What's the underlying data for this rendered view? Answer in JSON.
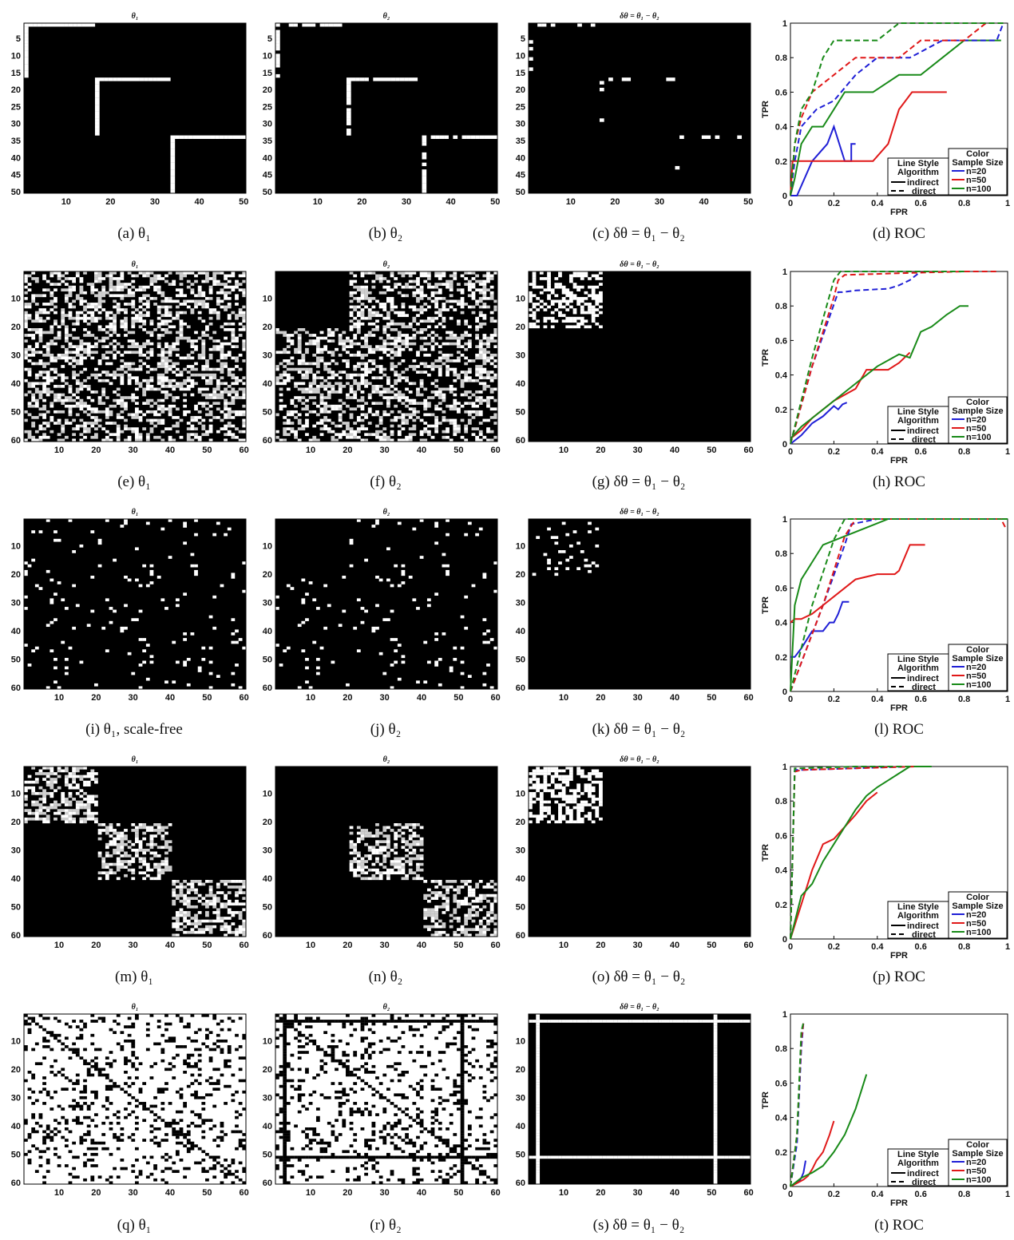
{
  "rows": [
    {
      "n": 50,
      "yticks": [
        5,
        10,
        15,
        20,
        25,
        30,
        35,
        40,
        45,
        50
      ],
      "xticks": [
        10,
        20,
        30,
        40,
        50
      ],
      "panels": [
        {
          "title": "θ₁",
          "caption": "(a) θ₁",
          "pattern": "lines1"
        },
        {
          "title": "θ₂",
          "caption": "(b) θ₂",
          "pattern": "lines2"
        },
        {
          "title": "δθ = θ₁ − θ₂",
          "caption": "(c) δθ = θ₁ − θ₂",
          "pattern": "linesdiff"
        }
      ],
      "roc_caption": "(d) ROC"
    },
    {
      "n": 60,
      "yticks": [
        10,
        20,
        30,
        40,
        50,
        60
      ],
      "xticks": [
        10,
        20,
        30,
        40,
        50,
        60
      ],
      "panels": [
        {
          "title": "θ₁",
          "caption": "(e) θ₁",
          "pattern": "dense_full"
        },
        {
          "title": "θ₂",
          "caption": "(f) θ₂",
          "pattern": "dense_missing_block"
        },
        {
          "title": "δθ = θ₁ − θ₂",
          "caption": "(g) δθ = θ₁ − θ₂",
          "pattern": "dense_block"
        }
      ],
      "roc_caption": "(h) ROC"
    },
    {
      "n": 60,
      "yticks": [
        10,
        20,
        30,
        40,
        50,
        60
      ],
      "xticks": [
        10,
        20,
        30,
        40,
        50,
        60
      ],
      "panels": [
        {
          "title": "θ₁",
          "caption": "(i) θ₁, scale-free",
          "pattern": "sparse_full"
        },
        {
          "title": "θ₂",
          "caption": "(j) θ₂",
          "pattern": "sparse_missing_block"
        },
        {
          "title": "δθ = θ₁ − θ₂",
          "caption": "(k) δθ = θ₁ − θ₂",
          "pattern": "sparse_block"
        }
      ],
      "roc_caption": "(l) ROC"
    },
    {
      "n": 60,
      "yticks": [
        10,
        20,
        30,
        40,
        50,
        60
      ],
      "xticks": [
        10,
        20,
        30,
        40,
        50,
        60
      ],
      "panels": [
        {
          "title": "θ₁",
          "caption": "(m) θ₁",
          "pattern": "blocks3"
        },
        {
          "title": "θ₂",
          "caption": "(n) θ₂",
          "pattern": "blocks2"
        },
        {
          "title": "δθ = θ₁ − θ₂",
          "caption": "(o) δθ = θ₁ − θ₂",
          "pattern": "blocks1"
        }
      ],
      "roc_caption": "(p) ROC"
    },
    {
      "n": 60,
      "yticks": [
        10,
        20,
        30,
        40,
        50,
        60
      ],
      "xticks": [
        10,
        20,
        30,
        40,
        50,
        60
      ],
      "panels": [
        {
          "title": "θ₁",
          "caption": "(q) θ₁",
          "pattern": "inv_full"
        },
        {
          "title": "θ₂",
          "caption": "(r) θ₂",
          "pattern": "inv_hubs"
        },
        {
          "title": "δθ = θ₁ − θ₂",
          "caption": "(s) δθ = θ₁ − θ₂",
          "pattern": "hub_lines"
        }
      ],
      "roc_caption": "(t) ROC"
    }
  ],
  "chart_data": [
    {
      "type": "line",
      "title": "",
      "xlabel": "FPR",
      "ylabel": "TPR",
      "xlim": [
        0,
        1
      ],
      "ylim": [
        0,
        1
      ],
      "xticks": [
        "0",
        "0.2",
        "0.4",
        "0.6",
        "0.8",
        "1"
      ],
      "yticks": [
        "0",
        "0.2",
        "0.4",
        "0.6",
        "0.8",
        "1"
      ],
      "series": [
        {
          "name": "n=20",
          "style": "indirect",
          "color": "#1f1fd6",
          "x": [
            0,
            0.03,
            0.1,
            0.17,
            0.2,
            0.25,
            0.28,
            0.28,
            0.3,
            0.3
          ],
          "y": [
            0,
            0,
            0.2,
            0.3,
            0.4,
            0.2,
            0.2,
            0.3,
            0.3,
            0.3
          ]
        },
        {
          "name": "n=50",
          "style": "indirect",
          "color": "#e01818",
          "x": [
            0,
            0.01,
            0.03,
            0.1,
            0.2,
            0.3,
            0.38,
            0.45,
            0.5,
            0.56,
            0.66,
            0.72
          ],
          "y": [
            0,
            0.2,
            0.2,
            0.2,
            0.2,
            0.2,
            0.2,
            0.3,
            0.5,
            0.6,
            0.6,
            0.6
          ]
        },
        {
          "name": "n=100",
          "style": "indirect",
          "color": "#188a18",
          "x": [
            0,
            0.02,
            0.05,
            0.1,
            0.15,
            0.25,
            0.38,
            0.44,
            0.5,
            0.6,
            0.7,
            0.8,
            0.9,
            0.97
          ],
          "y": [
            0,
            0.1,
            0.3,
            0.4,
            0.4,
            0.6,
            0.6,
            0.65,
            0.7,
            0.7,
            0.8,
            0.9,
            0.9,
            0.9
          ]
        },
        {
          "name": "n=20",
          "style": "direct",
          "color": "#1f1fd6",
          "x": [
            0,
            0.02,
            0.05,
            0.12,
            0.2,
            0.3,
            0.4,
            0.5,
            0.55,
            0.7,
            0.8,
            0.95,
            0.98
          ],
          "y": [
            0,
            0.2,
            0.4,
            0.5,
            0.55,
            0.7,
            0.8,
            0.8,
            0.8,
            0.9,
            0.9,
            0.9,
            1.0
          ]
        },
        {
          "name": "n=50",
          "style": "direct",
          "color": "#e01818",
          "x": [
            0,
            0.02,
            0.05,
            0.1,
            0.2,
            0.3,
            0.4,
            0.5,
            0.6,
            0.7,
            0.8,
            0.9,
            0.98
          ],
          "y": [
            0,
            0.3,
            0.45,
            0.6,
            0.7,
            0.8,
            0.8,
            0.8,
            0.9,
            0.9,
            0.9,
            1.0,
            1.0
          ]
        },
        {
          "name": "n=100",
          "style": "direct",
          "color": "#188a18",
          "x": [
            0,
            0.02,
            0.05,
            0.1,
            0.15,
            0.2,
            0.3,
            0.4,
            0.5,
            0.6,
            0.8,
            0.98
          ],
          "y": [
            0,
            0.3,
            0.5,
            0.6,
            0.8,
            0.9,
            0.9,
            0.9,
            1.0,
            1.0,
            1.0,
            1.0
          ]
        }
      ]
    },
    {
      "type": "line",
      "title": "",
      "xlabel": "FPR",
      "ylabel": "TPR",
      "xlim": [
        0,
        1
      ],
      "ylim": [
        0,
        1
      ],
      "xticks": [
        "0",
        "0.2",
        "0.4",
        "0.6",
        "0.8",
        "1"
      ],
      "yticks": [
        "0",
        "0.2",
        "0.4",
        "0.6",
        "0.8",
        "1"
      ],
      "series": [
        {
          "name": "n=20",
          "style": "indirect",
          "color": "#1f1fd6",
          "x": [
            0,
            0.05,
            0.1,
            0.15,
            0.2,
            0.22,
            0.24,
            0.26
          ],
          "y": [
            0,
            0.05,
            0.12,
            0.16,
            0.22,
            0.2,
            0.23,
            0.24
          ]
        },
        {
          "name": "n=50",
          "style": "indirect",
          "color": "#e01818",
          "x": [
            0,
            0.05,
            0.1,
            0.2,
            0.3,
            0.35,
            0.4,
            0.45,
            0.5,
            0.55
          ],
          "y": [
            0.03,
            0.08,
            0.15,
            0.25,
            0.32,
            0.43,
            0.43,
            0.43,
            0.47,
            0.53
          ]
        },
        {
          "name": "n=100",
          "style": "indirect",
          "color": "#188a18",
          "x": [
            0,
            0.05,
            0.1,
            0.2,
            0.3,
            0.4,
            0.5,
            0.55,
            0.6,
            0.65,
            0.72,
            0.78,
            0.82
          ],
          "y": [
            0.03,
            0.1,
            0.15,
            0.25,
            0.35,
            0.45,
            0.52,
            0.5,
            0.65,
            0.68,
            0.75,
            0.8,
            0.8
          ]
        },
        {
          "name": "n=20",
          "style": "direct",
          "color": "#1f1fd6",
          "x": [
            0,
            0.1,
            0.22,
            0.24,
            0.3,
            0.45,
            0.5,
            0.55,
            0.6
          ],
          "y": [
            0,
            0.45,
            0.88,
            0.88,
            0.89,
            0.9,
            0.92,
            0.95,
            1.0
          ]
        },
        {
          "name": "n=50",
          "style": "direct",
          "color": "#e01818",
          "x": [
            0,
            0.1,
            0.2,
            0.22,
            0.25,
            0.5,
            0.8,
            0.95
          ],
          "y": [
            0,
            0.45,
            0.85,
            0.95,
            0.98,
            0.99,
            1.0,
            1.0
          ]
        },
        {
          "name": "n=100",
          "style": "direct",
          "color": "#188a18",
          "x": [
            0,
            0.1,
            0.2,
            0.23,
            0.3,
            0.5,
            0.8
          ],
          "y": [
            0,
            0.5,
            0.95,
            1.0,
            1.0,
            1.0,
            1.0
          ]
        }
      ]
    },
    {
      "type": "line",
      "title": "",
      "xlabel": "FPR",
      "ylabel": "TPR",
      "xlim": [
        0,
        1
      ],
      "ylim": [
        0,
        1
      ],
      "xticks": [
        "0",
        "0.2",
        "0.4",
        "0.6",
        "0.8",
        "1"
      ],
      "yticks": [
        "0",
        "0.2",
        "0.4",
        "0.6",
        "0.8",
        "1"
      ],
      "series": [
        {
          "name": "n=20",
          "style": "indirect",
          "color": "#1f1fd6",
          "x": [
            0,
            0.02,
            0.05,
            0.1,
            0.15,
            0.18,
            0.2,
            0.22,
            0.24,
            0.27
          ],
          "y": [
            0.2,
            0.2,
            0.25,
            0.35,
            0.35,
            0.4,
            0.4,
            0.45,
            0.52,
            0.52
          ]
        },
        {
          "name": "n=50",
          "style": "indirect",
          "color": "#e01818",
          "x": [
            0,
            0.02,
            0.05,
            0.1,
            0.2,
            0.3,
            0.4,
            0.48,
            0.5,
            0.55,
            0.62
          ],
          "y": [
            0.4,
            0.42,
            0.42,
            0.45,
            0.55,
            0.65,
            0.68,
            0.68,
            0.7,
            0.85,
            0.85
          ]
        },
        {
          "name": "n=100",
          "style": "indirect",
          "color": "#188a18",
          "x": [
            0,
            0.02,
            0.05,
            0.1,
            0.15,
            0.25,
            0.35,
            0.45,
            0.5,
            0.6,
            0.8,
            1.0
          ],
          "y": [
            0,
            0.5,
            0.65,
            0.75,
            0.85,
            0.9,
            0.95,
            1.0,
            1.0,
            1.0,
            1.0,
            1.0
          ]
        },
        {
          "name": "n=20",
          "style": "direct",
          "color": "#1f1fd6",
          "x": [
            0,
            0.15,
            0.25,
            0.28,
            0.4,
            0.6,
            0.8,
            0.97
          ],
          "y": [
            0,
            0.5,
            0.85,
            0.97,
            1.0,
            1.0,
            1.0,
            1.0
          ]
        },
        {
          "name": "n=50",
          "style": "direct",
          "color": "#e01818",
          "x": [
            0,
            0.15,
            0.25,
            0.3,
            0.5,
            0.8,
            0.97,
            0.99
          ],
          "y": [
            0,
            0.5,
            0.9,
            1.0,
            1.0,
            1.0,
            1.0,
            0.95
          ]
        },
        {
          "name": "n=100",
          "style": "direct",
          "color": "#188a18",
          "x": [
            0,
            0.1,
            0.2,
            0.25,
            0.5,
            0.8,
            0.97
          ],
          "y": [
            0,
            0.5,
            0.88,
            1.0,
            1.0,
            1.0,
            1.0
          ]
        }
      ]
    },
    {
      "type": "line",
      "title": "",
      "xlabel": "FPR",
      "ylabel": "TPR",
      "xlim": [
        0,
        1
      ],
      "ylim": [
        0,
        1
      ],
      "xticks": [
        "0",
        "0.2",
        "0.4",
        "0.6",
        "0.8",
        "1"
      ],
      "yticks": [
        "0",
        "0.2",
        "0.4",
        "0.6",
        "0.8",
        "1"
      ],
      "series": [
        {
          "name": "n=20",
          "style": "indirect",
          "color": "#1f1fd6",
          "x": [],
          "y": []
        },
        {
          "name": "n=50",
          "style": "indirect",
          "color": "#e01818",
          "x": [
            0,
            0.05,
            0.1,
            0.15,
            0.2,
            0.25,
            0.3,
            0.35,
            0.4
          ],
          "y": [
            0,
            0.2,
            0.4,
            0.55,
            0.58,
            0.65,
            0.72,
            0.8,
            0.85
          ]
        },
        {
          "name": "n=100",
          "style": "indirect",
          "color": "#188a18",
          "x": [
            0,
            0.05,
            0.1,
            0.15,
            0.2,
            0.25,
            0.3,
            0.35,
            0.4,
            0.45,
            0.5,
            0.55,
            0.6,
            0.65
          ],
          "y": [
            0,
            0.25,
            0.32,
            0.45,
            0.55,
            0.65,
            0.75,
            0.83,
            0.88,
            0.92,
            0.96,
            1.0,
            1.0,
            1.0
          ]
        },
        {
          "name": "n=20",
          "style": "direct",
          "color": "#1f1fd6",
          "x": [
            0,
            0.02,
            0.05,
            0.3,
            0.55
          ],
          "y": [
            0,
            0.98,
            0.98,
            0.99,
            1.0
          ]
        },
        {
          "name": "n=50",
          "style": "direct",
          "color": "#e01818",
          "x": [
            0,
            0.02,
            0.05,
            0.3,
            0.58
          ],
          "y": [
            0,
            0.97,
            0.98,
            0.99,
            1.0
          ]
        },
        {
          "name": "n=100",
          "style": "direct",
          "color": "#188a18",
          "x": [
            0,
            0.02,
            0.05,
            0.3,
            0.62
          ],
          "y": [
            0,
            0.99,
            0.99,
            1.0,
            1.0
          ]
        }
      ]
    },
    {
      "type": "line",
      "title": "",
      "xlabel": "FPR",
      "ylabel": "TPR",
      "xlim": [
        0,
        1
      ],
      "ylim": [
        0,
        1
      ],
      "xticks": [
        "0",
        "0.2",
        "0.4",
        "0.6",
        "0.8",
        "1"
      ],
      "yticks": [
        "0",
        "0.2",
        "0.4",
        "0.6",
        "0.8",
        "1"
      ],
      "series": [
        {
          "name": "n=20",
          "style": "indirect",
          "color": "#1f1fd6",
          "x": [
            0,
            0.02,
            0.04,
            0.05,
            0.06,
            0.07
          ],
          "y": [
            0,
            0.02,
            0.03,
            0.05,
            0.08,
            0.15
          ]
        },
        {
          "name": "n=50",
          "style": "indirect",
          "color": "#e01818",
          "x": [
            0,
            0.03,
            0.06,
            0.08,
            0.1,
            0.12,
            0.15,
            0.18,
            0.2
          ],
          "y": [
            0,
            0.02,
            0.04,
            0.06,
            0.1,
            0.15,
            0.2,
            0.3,
            0.38
          ]
        },
        {
          "name": "n=100",
          "style": "indirect",
          "color": "#188a18",
          "x": [
            0,
            0.05,
            0.1,
            0.15,
            0.2,
            0.25,
            0.3,
            0.35
          ],
          "y": [
            0,
            0.05,
            0.08,
            0.12,
            0.2,
            0.3,
            0.45,
            0.65
          ]
        },
        {
          "name": "n=20",
          "style": "direct",
          "color": "#1f1fd6",
          "x": [
            0,
            0.03,
            0.05,
            0.06
          ],
          "y": [
            0,
            0.25,
            0.8,
            0.95
          ]
        },
        {
          "name": "n=50",
          "style": "direct",
          "color": "#e01818",
          "x": [
            0,
            0.03,
            0.05,
            0.06
          ],
          "y": [
            0,
            0.3,
            0.85,
            0.95
          ]
        },
        {
          "name": "n=100",
          "style": "direct",
          "color": "#188a18",
          "x": [
            0,
            0.03,
            0.05,
            0.06
          ],
          "y": [
            0,
            0.3,
            0.9,
            0.95
          ]
        }
      ]
    }
  ],
  "legend": {
    "line_style_title_1": "Line Style",
    "line_style_title_2": "Algorithm",
    "indirect": "indirect",
    "direct": "direct",
    "color_title_1": "Color",
    "color_title_2": "Sample Size",
    "n20": "n=20",
    "n50": "n=50",
    "n100": "n=100"
  },
  "colors": {
    "blue": "#1f1fd6",
    "red": "#e01818",
    "green": "#188a18"
  }
}
